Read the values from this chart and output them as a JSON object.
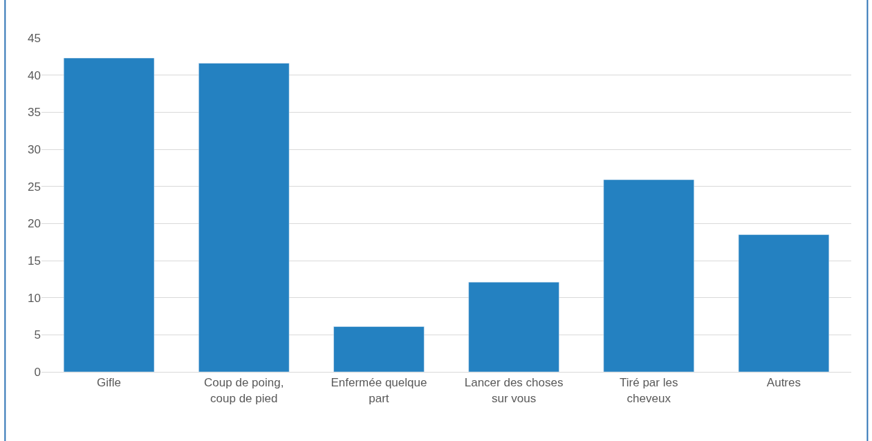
{
  "chart_data": {
    "type": "bar",
    "categories": [
      "Gifle",
      "Coup de poing, coup de pied",
      "Enfermée quelque part",
      "Lancer des choses sur vous",
      "Tiré par les cheveux",
      "Autres"
    ],
    "values": [
      42.3,
      41.6,
      6.1,
      12.1,
      25.9,
      18.5
    ],
    "color": "#2481c1",
    "ylim": [
      0,
      45
    ],
    "yticks": [
      0,
      5,
      10,
      15,
      20,
      25,
      30,
      35,
      40,
      45
    ],
    "grid": "y",
    "legend": false
  }
}
